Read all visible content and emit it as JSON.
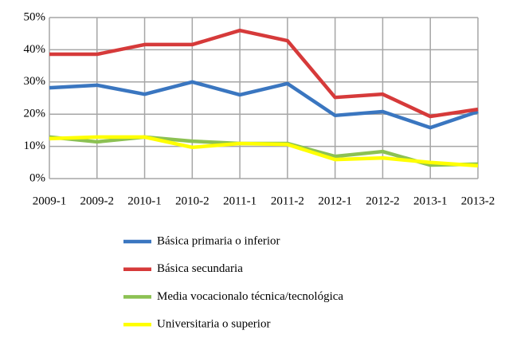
{
  "chart_data": {
    "type": "line",
    "categories": [
      "2009-1",
      "2009-2",
      "2010-1",
      "2010-2",
      "2011-1",
      "2011-2",
      "2012-1",
      "2012-2",
      "2013-1",
      "2013-2"
    ],
    "series": [
      {
        "name": "Básica primaria o inferior",
        "color": "#3a76c0",
        "values": [
          28.2,
          29,
          26.2,
          30,
          26,
          29.5,
          19.6,
          20.8,
          15.8,
          20.8
        ]
      },
      {
        "name": "Básica secundaria",
        "color": "#d63a3a",
        "values": [
          38.6,
          38.6,
          41.6,
          41.6,
          46,
          42.8,
          25.2,
          26.2,
          19.3,
          21.5
        ]
      },
      {
        "name": "Media vocacionalo técnica/tecnológica",
        "color": "#8cc153",
        "values": [
          12.9,
          11.4,
          12.9,
          11.6,
          10.9,
          10.9,
          6.9,
          8.4,
          4.2,
          4.5
        ]
      },
      {
        "name": "Universitaria o superior",
        "color": "#ffff00",
        "values": [
          12.4,
          12.9,
          12.9,
          9.7,
          10.9,
          10.6,
          5.9,
          6.4,
          5,
          4
        ]
      }
    ],
    "ylim": [
      0,
      50
    ],
    "yticks": [
      {
        "value": 0,
        "label": "0%"
      },
      {
        "value": 10,
        "label": "10%"
      },
      {
        "value": 20,
        "label": "20%"
      },
      {
        "value": 30,
        "label": "30%"
      },
      {
        "value": 40,
        "label": "40%"
      },
      {
        "value": 50,
        "label": "50%"
      }
    ],
    "grid": true
  }
}
